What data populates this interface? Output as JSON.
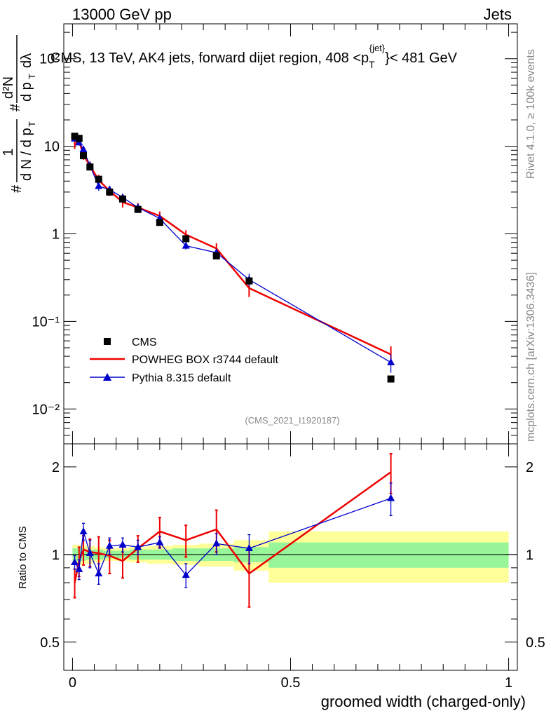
{
  "header": {
    "left": "13000 GeV pp",
    "right": "Jets",
    "title": "CMS, 13 TeV, AK4 jets, forward dijet region, 408 <p",
    "title_sup": "{jet}",
    "title_sub": "T",
    "title_tail": "}< 481 GeV"
  },
  "side": {
    "rivet": "Rivet 4.1.0, ≥ 100k events",
    "mcplots": "mcplots.cern.ch [arXiv:1306.3436]"
  },
  "watermark": "(CMS_2021_I1920187)",
  "yaxis_main": {
    "hash1": "#",
    "one": "1",
    "dN": "d N / d p",
    "T1": "T",
    "hash2": "#",
    "d2N": "d²N",
    "dp": "d p",
    "T2": "T",
    "dlambda": "dλ"
  },
  "ratio_ylabel": "Ratio to CMS",
  "xlabel": "groomed width (charged-only)",
  "legend": {
    "cms": "CMS",
    "powheg": "POWHEG BOX r3744 default",
    "pythia": "Pythia 8.315 default"
  },
  "colors": {
    "cms": "#000000",
    "powheg": "#ee0000",
    "pythia": "#0000cc",
    "band_inner": "#99f599",
    "band_outer": "#ffff99"
  },
  "main_ticks": {
    "labels": [
      "10⁻²",
      "10⁻¹",
      "1",
      "10",
      "10²"
    ],
    "values": [
      0.01,
      0.1,
      1,
      10,
      100
    ]
  },
  "ratio_ticks": {
    "labels": [
      "0.5",
      "1",
      "2"
    ],
    "values": [
      0.5,
      1,
      2
    ]
  },
  "x_ticks": {
    "labels": [
      "0",
      "0.5",
      "1"
    ],
    "values": [
      0,
      0.5,
      1
    ]
  },
  "chart_data": {
    "type": "line",
    "xlim": [
      -0.02,
      1.02
    ],
    "ylim_main": [
      0.004,
      250
    ],
    "ylim_ratio": [
      0.4,
      2.4
    ],
    "log_y": true,
    "x": [
      0.005,
      0.015,
      0.025,
      0.04,
      0.06,
      0.085,
      0.115,
      0.15,
      0.2,
      0.26,
      0.33,
      0.405,
      0.73
    ],
    "bin_edges": [
      0.0,
      0.01,
      0.02,
      0.03,
      0.05,
      0.07,
      0.1,
      0.13,
      0.17,
      0.23,
      0.29,
      0.37,
      0.45,
      1.0
    ],
    "series": [
      {
        "name": "CMS",
        "values": [
          13.0,
          12.3,
          7.8,
          5.8,
          4.2,
          3.0,
          2.5,
          1.9,
          1.35,
          0.88,
          0.56,
          0.29,
          0.022
        ],
        "ratio_band_inner": [
          0.05,
          0.05,
          0.05,
          0.04,
          0.04,
          0.03,
          0.03,
          0.04,
          0.04,
          0.05,
          0.05,
          0.06,
          0.1
        ],
        "ratio_band_outer": [
          0.08,
          0.08,
          0.08,
          0.07,
          0.06,
          0.05,
          0.05,
          0.06,
          0.07,
          0.08,
          0.09,
          0.12,
          0.2
        ]
      },
      {
        "name": "POWHEG BOX r3744 default",
        "values": [
          10.5,
          11.5,
          8.0,
          6.0,
          4.1,
          3.1,
          2.3,
          2.0,
          1.6,
          0.98,
          0.68,
          0.24,
          0.042
        ],
        "errors": [
          1.2,
          1.3,
          1.0,
          0.7,
          0.6,
          0.4,
          0.3,
          0.25,
          0.2,
          0.12,
          0.1,
          0.05,
          0.01
        ],
        "ratio": [
          0.8,
          0.95,
          1.04,
          1.02,
          1.01,
          0.99,
          0.95,
          1.05,
          1.2,
          1.12,
          1.22,
          0.86,
          1.92
        ],
        "ratio_errors": [
          0.09,
          0.11,
          0.12,
          0.11,
          0.14,
          0.13,
          0.12,
          0.11,
          0.14,
          0.14,
          0.2,
          0.2,
          0.3
        ]
      },
      {
        "name": "Pythia 8.315 default",
        "values": [
          12.2,
          11.0,
          9.2,
          6.0,
          3.5,
          3.2,
          2.6,
          2.0,
          1.5,
          0.73,
          0.61,
          0.3,
          0.034
        ],
        "errors": [
          0.7,
          0.8,
          0.9,
          0.5,
          0.4,
          0.3,
          0.25,
          0.2,
          0.15,
          0.07,
          0.06,
          0.05,
          0.008
        ],
        "ratio": [
          0.94,
          0.89,
          1.2,
          1.01,
          0.86,
          1.07,
          1.08,
          1.06,
          1.1,
          0.85,
          1.09,
          1.05,
          1.56
        ],
        "ratio_errors": [
          0.05,
          0.07,
          0.08,
          0.11,
          0.07,
          0.07,
          0.06,
          0.06,
          0.05,
          0.08,
          0.09,
          0.12,
          0.2
        ]
      }
    ]
  }
}
